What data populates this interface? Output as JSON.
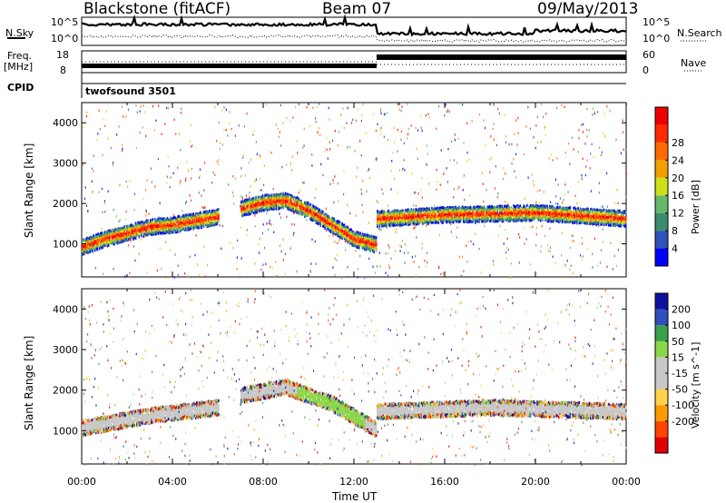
{
  "header": {
    "radar": "Blackstone (fitACF)",
    "beam": "Beam 07",
    "date": "09/May/2013"
  },
  "side_labels": {
    "nsky": "N.Sky",
    "freq_line1": "Freq.",
    "freq_line2": "[MHz]",
    "cpid": "CPID",
    "nsearch": "N.Search",
    "nave": "Nave"
  },
  "top_axis_labels": {
    "noise_hi": "10^5",
    "noise_lo": "10^0",
    "freq_hi": "18",
    "freq_lo": "8",
    "nave_hi": "60",
    "nave_lo": "0"
  },
  "cpid_text": "twofsound 3501",
  "colors": {
    "power_scale": [
      "#0000ff",
      "#2e52b8",
      "#3a8c6e",
      "#66b86a",
      "#cfe016",
      "#f2a000",
      "#ff6a00",
      "#ff2a00",
      "#ee0000"
    ],
    "velocity_scale": [
      "#1010a0",
      "#2f4fbf",
      "#3aa04a",
      "#8ad64a",
      "#c8c8c8",
      "#c8c8c8",
      "#ffd24a",
      "#ff9a00",
      "#ff4400",
      "#e00000"
    ]
  },
  "chart_data": [
    {
      "type": "heatmap",
      "name_panel": "power",
      "ylabel": "Slant Range [km]",
      "ylim": [
        180,
        4500
      ],
      "yticks": [
        1000,
        2000,
        3000,
        4000
      ],
      "colorbar_label": "Power [dB]",
      "colorbar_ticks": [
        "4",
        "8",
        "12",
        "16",
        "20",
        "24",
        "28"
      ],
      "echo_bands": [
        {
          "t": [
            0,
            1,
            2,
            3,
            4,
            5,
            6
          ],
          "range": [
            950,
            1150,
            1300,
            1450,
            1500,
            1600,
            1700
          ]
        },
        {
          "t": [
            7,
            8,
            9,
            10,
            11,
            12,
            13
          ],
          "range": [
            1900,
            2050,
            2100,
            1850,
            1500,
            1150,
            1000
          ]
        },
        {
          "t": [
            13,
            16,
            20,
            24
          ],
          "range": [
            1650,
            1750,
            1800,
            1650
          ]
        }
      ]
    },
    {
      "type": "heatmap",
      "name_panel": "velocity",
      "ylabel": "Slant Range [km]",
      "ylim": [
        180,
        4500
      ],
      "yticks": [
        1000,
        2000,
        3000,
        4000
      ],
      "colorbar_label": "Velocity [m s^-1]",
      "colorbar_ticks": [
        "200",
        "100",
        "50",
        "15",
        "-15",
        "-50",
        "-100",
        "-200"
      ],
      "echo_bands": [
        {
          "t": [
            0,
            3,
            6
          ],
          "range": [
            1100,
            1400,
            1600
          ]
        },
        {
          "t": [
            7,
            9,
            11,
            13
          ],
          "range": [
            1900,
            2100,
            1700,
            1050
          ]
        },
        {
          "t": [
            13,
            18,
            24
          ],
          "range": [
            1500,
            1600,
            1500
          ]
        }
      ]
    }
  ],
  "time_axis": {
    "xlabel": "Time UT",
    "xlim": [
      0,
      24
    ],
    "ticks": [
      "00:00",
      "04:00",
      "08:00",
      "12:00",
      "16:00",
      "20:00",
      "00:00"
    ]
  }
}
